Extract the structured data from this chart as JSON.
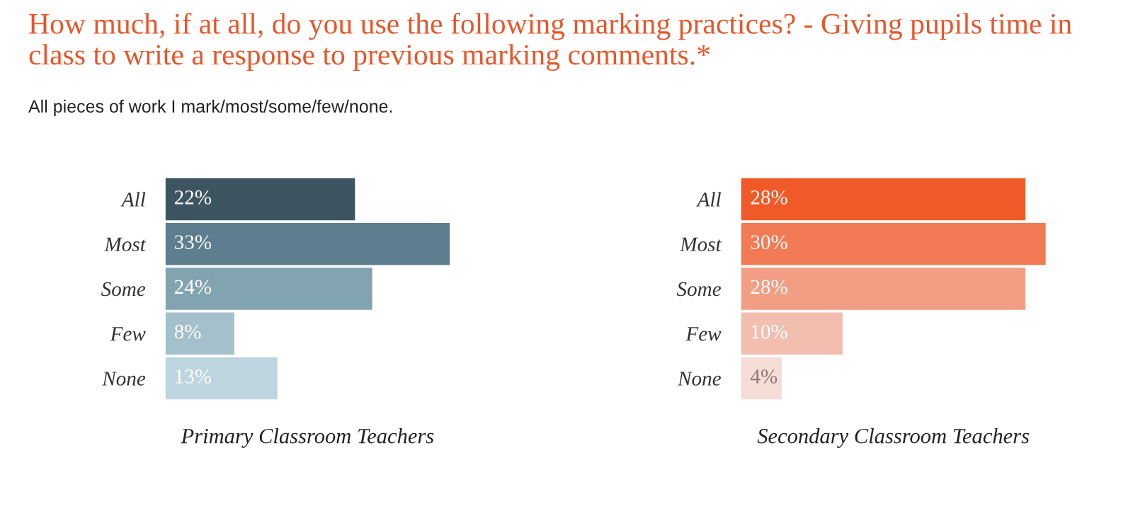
{
  "chart_data": [
    {
      "type": "bar",
      "orientation": "horizontal",
      "title": "How much, if at all, do you use the following marking practices? - Giving pupils time in class to write a response to previous marking comments.*",
      "subtitle": "All pieces of work I mark/most/some/few/none.",
      "xlabel": "Primary Classroom Teachers",
      "categories": [
        "All",
        "Most",
        "Some",
        "Few",
        "None"
      ],
      "values": [
        22,
        33,
        24,
        8,
        13
      ],
      "colors": [
        "#3d5561",
        "#5e7d8e",
        "#82a4b0",
        "#a3c0cc",
        "#bdd5de"
      ],
      "value_labels": [
        "22%",
        "33%",
        "24%",
        "8%",
        "13%"
      ],
      "tick_labels": "y",
      "grid": false,
      "legend": false
    },
    {
      "type": "bar",
      "orientation": "horizontal",
      "xlabel": "Secondary Classroom Teachers",
      "categories": [
        "All",
        "Most",
        "Some",
        "Few",
        "None"
      ],
      "values": [
        28,
        30,
        28,
        10,
        4
      ],
      "colors": [
        "#f05a28",
        "#f27b55",
        "#f29e85",
        "#f2beb0",
        "#f5dcd5"
      ],
      "value_labels": [
        "28%",
        "30%",
        "28%",
        "10%",
        "4%"
      ],
      "tick_labels": "y",
      "grid": false,
      "legend": false
    }
  ]
}
